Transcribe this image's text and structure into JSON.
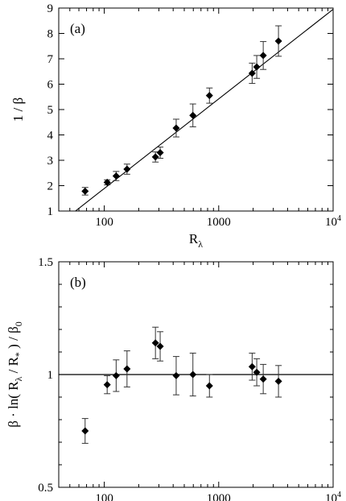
{
  "chart_data": [
    {
      "type": "scatter",
      "panel_label": "(a)",
      "xlabel": "R_λ",
      "ylabel": "1 / β",
      "x_scale": "log",
      "xlim": [
        40,
        10000
      ],
      "ylim": [
        1,
        9
      ],
      "x_tick_labels": [
        "100",
        "1000",
        "10^4"
      ],
      "x_tick_values": [
        100,
        1000,
        10000
      ],
      "y_tick_labels": [
        "1",
        "2",
        "3",
        "4",
        "5",
        "6",
        "7",
        "8",
        "9"
      ],
      "y_tick_values": [
        1,
        2,
        3,
        4,
        5,
        6,
        7,
        8,
        9
      ],
      "grid": false,
      "points": [
        {
          "x": 68,
          "y": 1.78,
          "err": 0.15
        },
        {
          "x": 106,
          "y": 2.13,
          "err": 0.1
        },
        {
          "x": 127,
          "y": 2.38,
          "err": 0.18
        },
        {
          "x": 158,
          "y": 2.65,
          "err": 0.2
        },
        {
          "x": 280,
          "y": 3.13,
          "err": 0.2
        },
        {
          "x": 308,
          "y": 3.3,
          "err": 0.22
        },
        {
          "x": 425,
          "y": 4.27,
          "err": 0.35
        },
        {
          "x": 595,
          "y": 4.77,
          "err": 0.45
        },
        {
          "x": 830,
          "y": 5.55,
          "err": 0.3
        },
        {
          "x": 1960,
          "y": 6.43,
          "err": 0.4
        },
        {
          "x": 2150,
          "y": 6.68,
          "err": 0.45
        },
        {
          "x": 2450,
          "y": 7.13,
          "err": 0.55
        },
        {
          "x": 3330,
          "y": 7.7,
          "err": 0.6
        }
      ],
      "fit_line": {
        "x": [
          56,
          10000
        ],
        "y": [
          1.0,
          8.95
        ]
      }
    },
    {
      "type": "scatter",
      "panel_label": "(b)",
      "xlabel": "R_λ",
      "ylabel": "β · ln( R_λ / R_* ) / β_0",
      "x_scale": "log",
      "xlim": [
        40,
        10000
      ],
      "ylim": [
        0.5,
        1.5
      ],
      "x_tick_labels": [
        "100",
        "1000",
        "10^4"
      ],
      "x_tick_values": [
        100,
        1000,
        10000
      ],
      "y_tick_labels": [
        "0.5",
        "1",
        "1.5"
      ],
      "y_tick_values": [
        0.5,
        1.0,
        1.5
      ],
      "grid": false,
      "points": [
        {
          "x": 68,
          "y": 0.75,
          "err": 0.055
        },
        {
          "x": 106,
          "y": 0.955,
          "err": 0.04
        },
        {
          "x": 127,
          "y": 0.995,
          "err": 0.07
        },
        {
          "x": 158,
          "y": 1.025,
          "err": 0.08
        },
        {
          "x": 280,
          "y": 1.14,
          "err": 0.07
        },
        {
          "x": 308,
          "y": 1.125,
          "err": 0.065
        },
        {
          "x": 425,
          "y": 0.995,
          "err": 0.085
        },
        {
          "x": 595,
          "y": 1.0,
          "err": 0.095
        },
        {
          "x": 830,
          "y": 0.95,
          "err": 0.05
        },
        {
          "x": 1960,
          "y": 1.035,
          "err": 0.06
        },
        {
          "x": 2150,
          "y": 1.01,
          "err": 0.06
        },
        {
          "x": 2450,
          "y": 0.98,
          "err": 0.065
        },
        {
          "x": 3330,
          "y": 0.97,
          "err": 0.07
        }
      ],
      "reference_line": {
        "y": 1.0
      }
    }
  ]
}
